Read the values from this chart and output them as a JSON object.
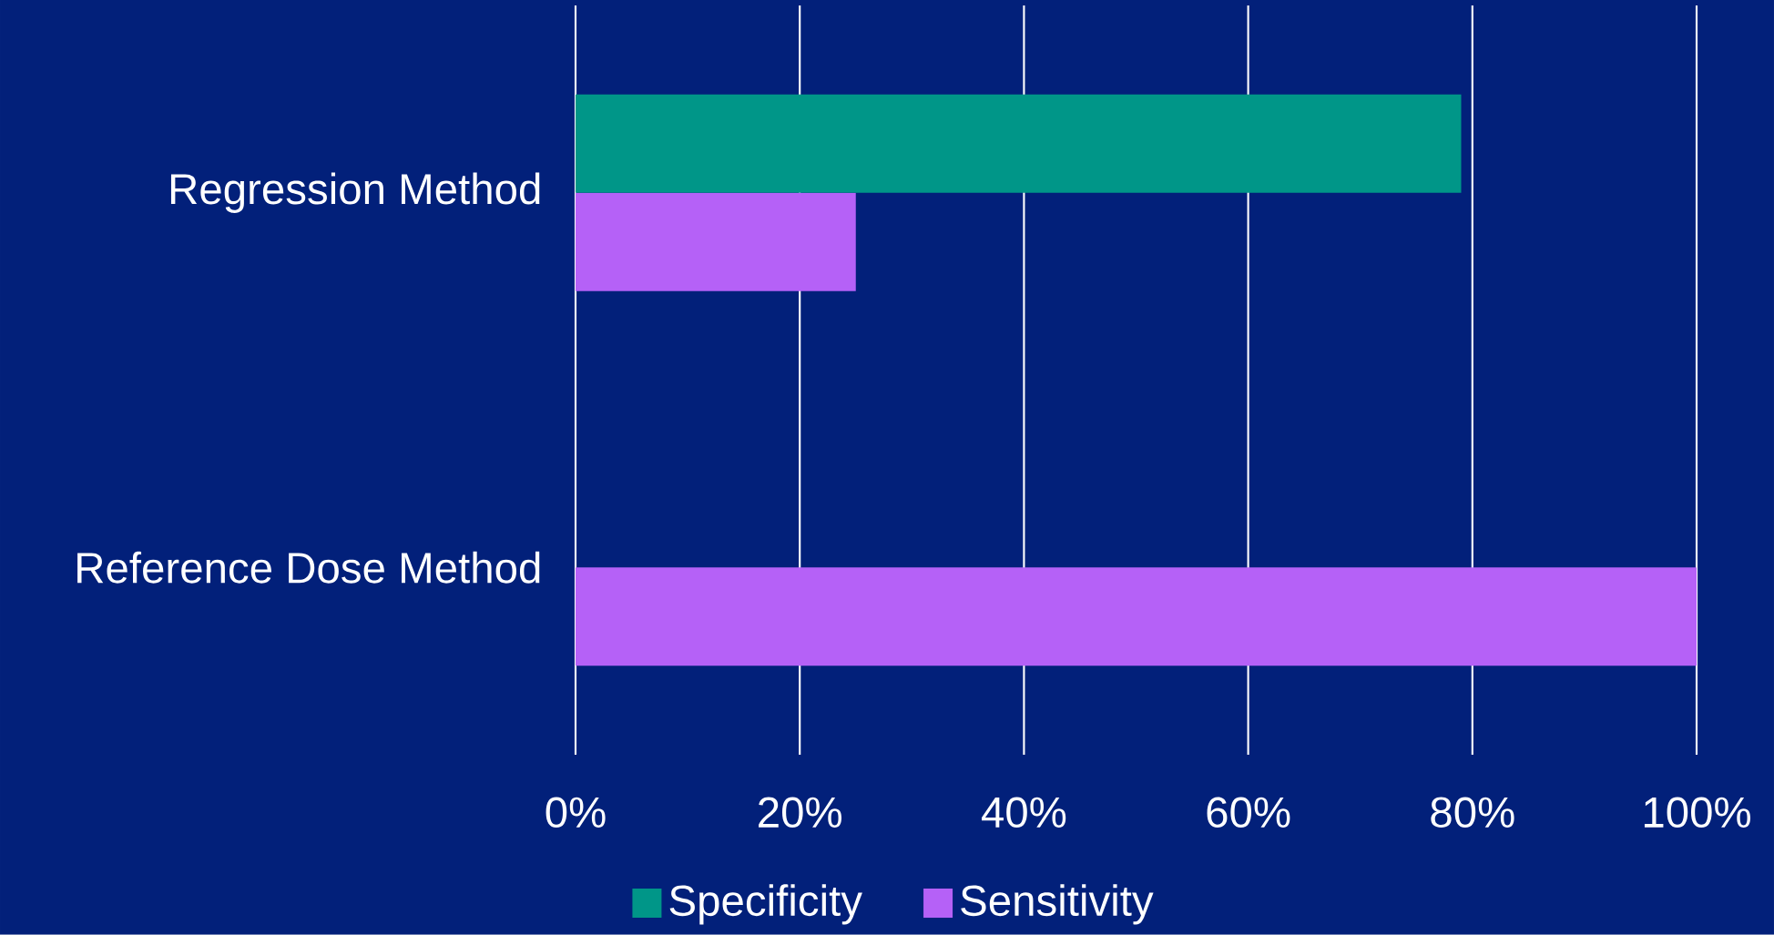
{
  "chart_data": {
    "type": "bar",
    "orientation": "horizontal",
    "categories": [
      "Regression Method",
      "Reference Dose Method"
    ],
    "series": [
      {
        "name": "Specificity",
        "color": "#009688",
        "values": [
          79,
          0
        ]
      },
      {
        "name": "Sensitivity",
        "color": "#b561f7",
        "values": [
          25,
          100
        ]
      }
    ],
    "xlim": [
      0,
      100
    ],
    "xticks": [
      {
        "value": 0,
        "label": "0%"
      },
      {
        "value": 20,
        "label": "20%"
      },
      {
        "value": 40,
        "label": "40%"
      },
      {
        "value": 60,
        "label": "60%"
      },
      {
        "value": 80,
        "label": "80%"
      },
      {
        "value": 100,
        "label": "100%"
      }
    ],
    "grid": "x",
    "legend": "bottom"
  }
}
